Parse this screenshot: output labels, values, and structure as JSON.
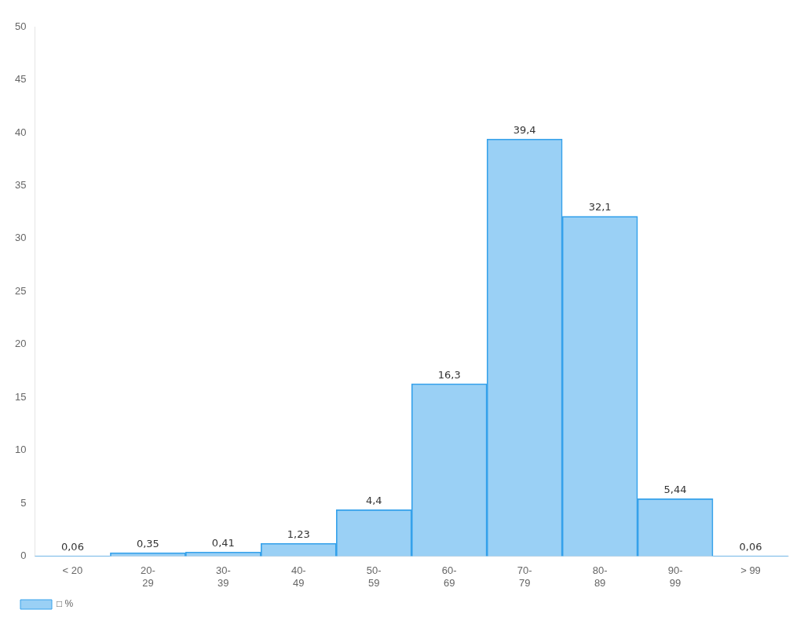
{
  "chart_data": {
    "type": "bar",
    "categories": [
      "< 20",
      "20-\n29",
      "30-\n39",
      "40-\n49",
      "50-\n59",
      "60-\n69",
      "70-\n79",
      "80-\n89",
      "90-\n99",
      "> 99"
    ],
    "series": [
      {
        "name": "□ %",
        "values": [
          0.06,
          0.35,
          0.41,
          1.23,
          4.4,
          16.3,
          39.4,
          32.1,
          5.44,
          0.06
        ],
        "value_labels": [
          "0,06",
          "0,35",
          "0,41",
          "1,23",
          "4,4",
          "16,3",
          "39,4",
          "32,1",
          "5,44",
          "0,06"
        ]
      }
    ],
    "ylim": [
      0,
      50
    ],
    "yticks": [
      0,
      5,
      10,
      15,
      20,
      25,
      30,
      35,
      40,
      45,
      50
    ],
    "grid": false,
    "legend": "lower left"
  }
}
